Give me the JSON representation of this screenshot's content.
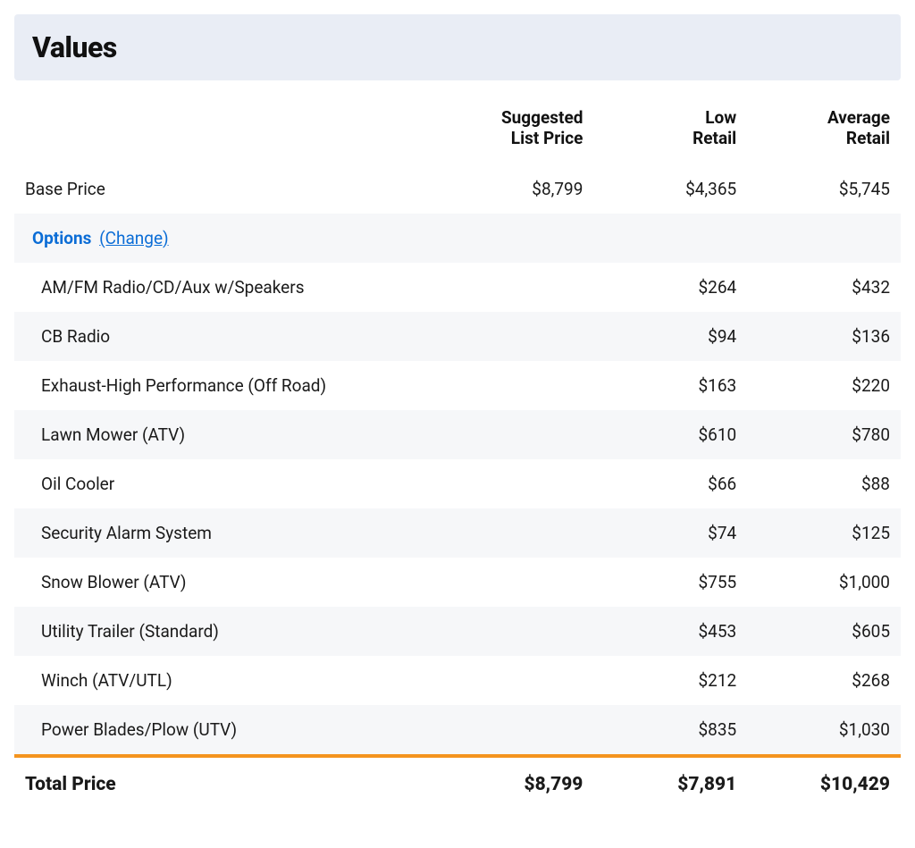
{
  "colors": {
    "header_bg": "#e9edf5",
    "alt_row_bg": "#f6f7f9",
    "link": "#0b6dd6",
    "divider": "#f4941e",
    "text": "#1a1a1a"
  },
  "title": "Values",
  "columns": {
    "suggested_list_price_l1": "Suggested",
    "suggested_list_price_l2": "List Price",
    "low_retail_l1": "Low",
    "low_retail_l2": "Retail",
    "average_retail_l1": "Average",
    "average_retail_l2": "Retail"
  },
  "base_price": {
    "label": "Base Price",
    "suggested": "$8,799",
    "low": "$4,365",
    "avg": "$5,745"
  },
  "options_header": {
    "label": "Options",
    "change_link": "(Change)"
  },
  "options": [
    {
      "name": "AM/FM Radio/CD/Aux w/Speakers",
      "suggested": "",
      "low": "$264",
      "avg": "$432"
    },
    {
      "name": "CB Radio",
      "suggested": "",
      "low": "$94",
      "avg": "$136"
    },
    {
      "name": "Exhaust-High Performance (Off Road)",
      "suggested": "",
      "low": "$163",
      "avg": "$220"
    },
    {
      "name": "Lawn Mower (ATV)",
      "suggested": "",
      "low": "$610",
      "avg": "$780"
    },
    {
      "name": "Oil Cooler",
      "suggested": "",
      "low": "$66",
      "avg": "$88"
    },
    {
      "name": "Security Alarm System",
      "suggested": "",
      "low": "$74",
      "avg": "$125"
    },
    {
      "name": "Snow Blower (ATV)",
      "suggested": "",
      "low": "$755",
      "avg": "$1,000"
    },
    {
      "name": "Utility Trailer (Standard)",
      "suggested": "",
      "low": "$453",
      "avg": "$605"
    },
    {
      "name": "Winch (ATV/UTL)",
      "suggested": "",
      "low": "$212",
      "avg": "$268"
    },
    {
      "name": "Power Blades/Plow (UTV)",
      "suggested": "",
      "low": "$835",
      "avg": "$1,030"
    }
  ],
  "total": {
    "label": "Total Price",
    "suggested": "$8,799",
    "low": "$7,891",
    "avg": "$10,429"
  }
}
